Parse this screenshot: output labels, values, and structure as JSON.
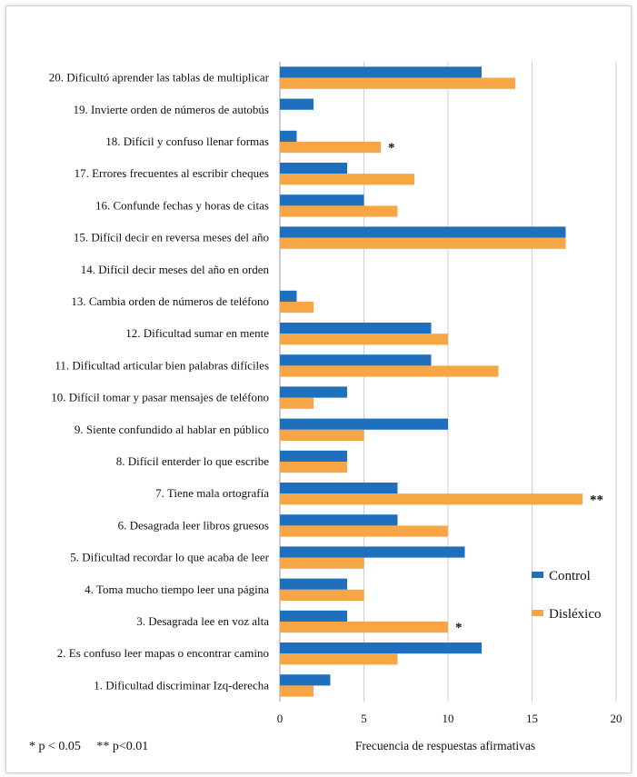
{
  "chart_data": {
    "type": "bar",
    "orientation": "horizontal",
    "categories": [
      "20. Dificultó aprender las tablas de multiplicar",
      "19. Invierte  orden de números de autobús",
      "18. Difícil y confuso llenar formas",
      "17. Errores frecuentes al escribir cheques",
      "16. Confunde fechas y horas de citas",
      "15. Difícil decir en reversa meses del año",
      "14. Difícil decir meses del  año en orden",
      "13. Cambia orden de números de teléfono",
      "12. Dificultad sumar en mente",
      "11. Dificultad articular bien palabras difíciles",
      "10. Difícil tomar y pasar mensajes de teléfono",
      "9. Siente confundido al  hablar en público",
      "8. Difícil enterder lo que escribe",
      "7. Tiene mala ortografía",
      "6. Desagrada leer libros gruesos",
      "5. Dificultad recordar lo que acaba de leer",
      "4. Toma mucho tiempo leer una página",
      "3. Desagrada lee en voz alta",
      "2. Es confuso leer mapas o encontrar camino",
      "1. Dificultad discriminar Izq-derecha"
    ],
    "series": [
      {
        "name": "Control",
        "color": "#1f6fbf",
        "values": [
          12,
          2,
          1,
          4,
          5,
          17,
          0,
          1,
          9,
          9,
          4,
          10,
          4,
          7,
          7,
          11,
          4,
          4,
          12,
          3
        ]
      },
      {
        "name": "Disléxico",
        "color": "#f7a545",
        "values": [
          14,
          0,
          6,
          8,
          7,
          17,
          0,
          2,
          10,
          13,
          2,
          5,
          4,
          18,
          10,
          5,
          5,
          10,
          7,
          2
        ]
      }
    ],
    "significance": [
      {
        "category_index": 2,
        "marker": "*"
      },
      {
        "category_index": 13,
        "marker": "**"
      },
      {
        "category_index": 17,
        "marker": "*"
      }
    ],
    "xlabel": "Frecuencia de respuestas afirmativas",
    "xlim": [
      0,
      20
    ],
    "xticks": [
      0,
      5,
      10,
      15,
      20
    ],
    "grid": "vertical",
    "legend_position": "right",
    "footnote": "* p < 0.05     ** p<0.01"
  }
}
